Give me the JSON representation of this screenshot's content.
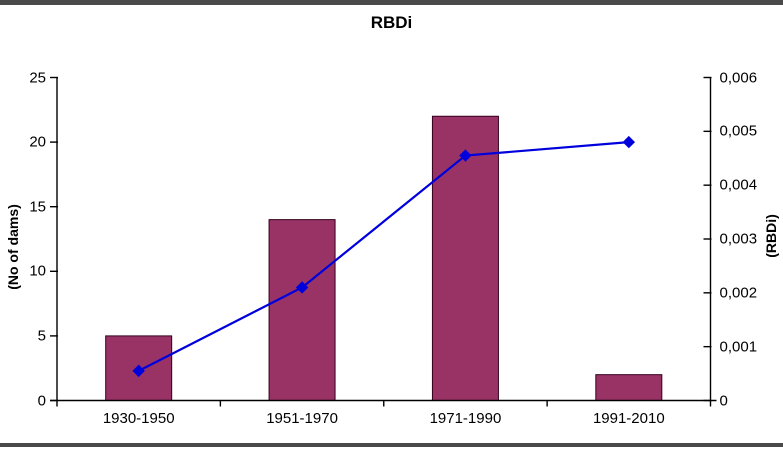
{
  "frame": {
    "border_color": "#4a4a4a"
  },
  "chart_data": {
    "type": "combo_bar_line",
    "title": "RBDi",
    "categories": [
      "1930-1950",
      "1951-1970",
      "1971-1990",
      "1991-2010"
    ],
    "series": [
      {
        "name": "No of dams",
        "type": "bar",
        "axis": "left",
        "values": [
          5,
          14,
          22,
          2
        ],
        "fill": "#993366",
        "stroke": "#35001c"
      },
      {
        "name": "RBDi",
        "type": "line",
        "axis": "right",
        "values": [
          0.00055,
          0.0021,
          0.00455,
          0.0048
        ],
        "color": "#0000dd",
        "marker": "diamond"
      }
    ],
    "left_axis": {
      "label": "(No of dams)",
      "min": 0,
      "max": 25,
      "tick_labels": [
        "0",
        "5",
        "10",
        "15",
        "20",
        "25"
      ],
      "tick_values": [
        0,
        5,
        10,
        15,
        20,
        25
      ]
    },
    "right_axis": {
      "label": "(RBDi)",
      "min": 0,
      "max": 0.006,
      "tick_labels": [
        "0",
        "0,001",
        "0,002",
        "0,003",
        "0,004",
        "0,005",
        "0,006"
      ],
      "tick_values": [
        0,
        0.001,
        0.002,
        0.003,
        0.004,
        0.005,
        0.006
      ]
    },
    "grid": false,
    "legend": null,
    "background": "#ffffff",
    "axis_color": "#000000"
  }
}
